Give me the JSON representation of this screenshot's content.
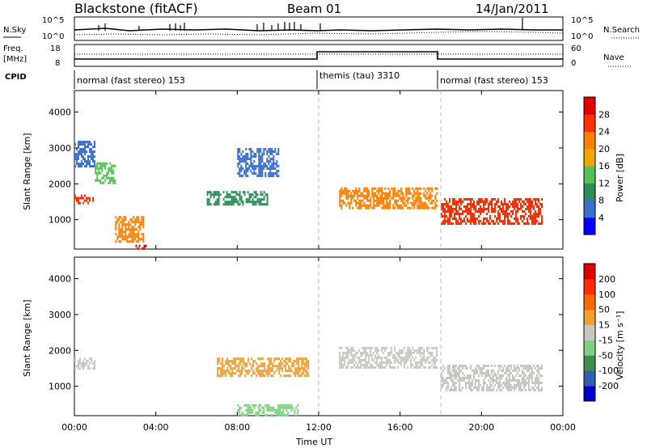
{
  "header": {
    "station": "Blackstone (fitACF)",
    "beam": "Beam 01",
    "date": "14/Jan/2011"
  },
  "top_panels": {
    "nsky_label": "N.Sky",
    "nsearch_label": "N.Search",
    "freq_label": "Freq.",
    "freq_unit": "[MHz]",
    "nave_label": "Nave",
    "cpid_label": "CPID",
    "nsky_ticks": [
      "10^5",
      "10^0"
    ],
    "nsearch_ticks": [
      "10^5",
      "10^0"
    ],
    "freq_ticks": [
      "18",
      "8"
    ],
    "nave_ticks": [
      "60",
      "0"
    ]
  },
  "cpid_segments": [
    {
      "label": "normal (fast stereo) 153",
      "start": 0,
      "end": 12
    },
    {
      "label": "themis (tau) 3310",
      "start": 12,
      "end": 18
    },
    {
      "label": "normal (fast stereo) 153",
      "start": 18,
      "end": 24
    }
  ],
  "chart_data": [
    {
      "type": "heatmap",
      "title": "Power",
      "ylabel": "Slant Range [km]",
      "xlabel": "Time UT",
      "x_ticks": [
        "00:00",
        "04:00",
        "08:00",
        "12:00",
        "16:00",
        "20:00",
        "00:00"
      ],
      "y_ticks": [
        1000,
        2000,
        3000,
        4000
      ],
      "xlim": [
        0,
        24
      ],
      "ylim": [
        180,
        4600
      ],
      "colorbar": {
        "label": "Power [dB]",
        "ticks": [
          "4",
          "8",
          "12",
          "16",
          "20",
          "24",
          "28"
        ],
        "colors": [
          "#0000ff",
          "#3a6fd0",
          "#2e8b57",
          "#55c155",
          "#f0a800",
          "#ff7f00",
          "#ff3000",
          "#e00000"
        ]
      },
      "echo_regions": [
        {
          "t0": 0.0,
          "t1": 0.9,
          "r0": 1450,
          "r1": 1700,
          "level": 6
        },
        {
          "t0": 0.0,
          "t1": 1.0,
          "r0": 2500,
          "r1": 3200,
          "level": 1
        },
        {
          "t0": 1.0,
          "t1": 2.0,
          "r0": 2000,
          "r1": 2600,
          "level": 3
        },
        {
          "t0": 2.0,
          "t1": 3.4,
          "r0": 400,
          "r1": 1100,
          "level": 5
        },
        {
          "t0": 3.0,
          "t1": 3.5,
          "r0": 200,
          "r1": 300,
          "level": 7
        },
        {
          "t0": 6.5,
          "t1": 9.5,
          "r0": 1400,
          "r1": 1800,
          "level": 2
        },
        {
          "t0": 8.0,
          "t1": 10.0,
          "r0": 2200,
          "r1": 3000,
          "level": 1
        },
        {
          "t0": 13.0,
          "t1": 17.8,
          "r0": 1300,
          "r1": 1900,
          "level": 5
        },
        {
          "t0": 18.0,
          "t1": 23.0,
          "r0": 900,
          "r1": 1600,
          "level": 6
        }
      ]
    },
    {
      "type": "heatmap",
      "title": "Velocity",
      "ylabel": "Slant Range [km]",
      "xlabel": "Time UT",
      "x_ticks": [
        "00:00",
        "04:00",
        "08:00",
        "12:00",
        "16:00",
        "20:00",
        "00:00"
      ],
      "y_ticks": [
        1000,
        2000,
        3000,
        4000
      ],
      "xlim": [
        0,
        24
      ],
      "ylim": [
        180,
        4600
      ],
      "colorbar": {
        "label": "Velocity [m s⁻¹]",
        "ticks": [
          "200",
          "100",
          "50",
          "15",
          "-15",
          "-50",
          "-100",
          "-200"
        ],
        "colors": [
          "#0000cc",
          "#2f5fb0",
          "#3a8f50",
          "#7fd07f",
          "#c8c8c0",
          "#f0a030",
          "#ff6a00",
          "#ff2a00",
          "#e00000"
        ]
      },
      "echo_regions": [
        {
          "t0": 0.0,
          "t1": 1.0,
          "r0": 1500,
          "r1": 1800,
          "level": 4
        },
        {
          "t0": 7.0,
          "t1": 11.5,
          "r0": 1300,
          "r1": 1800,
          "level": 5
        },
        {
          "t0": 8.0,
          "t1": 11.0,
          "r0": 200,
          "r1": 500,
          "level": 3
        },
        {
          "t0": 13.0,
          "t1": 17.8,
          "r0": 1500,
          "r1": 2100,
          "level": 4
        },
        {
          "t0": 18.0,
          "t1": 23.0,
          "r0": 900,
          "r1": 1600,
          "level": 4
        }
      ]
    }
  ]
}
